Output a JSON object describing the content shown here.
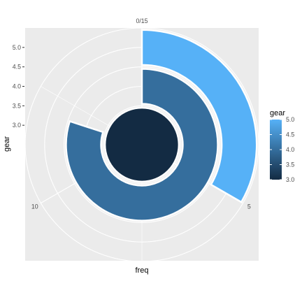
{
  "chart_data": {
    "type": "bar",
    "coord": "polar",
    "xlabel": "freq",
    "ylabel": "gear",
    "theta_ticks": [
      {
        "value": 0,
        "label": "0/15"
      },
      {
        "value": 5,
        "label": "5"
      },
      {
        "value": 10,
        "label": "10"
      }
    ],
    "theta_range": [
      0,
      15
    ],
    "r_ticks": [
      {
        "value": 3.0,
        "label": "3.0"
      },
      {
        "value": 3.5,
        "label": "3.5"
      },
      {
        "value": 4.0,
        "label": "4.0"
      },
      {
        "value": 4.5,
        "label": "4.5"
      },
      {
        "value": 5.0,
        "label": "5.0"
      }
    ],
    "bars": [
      {
        "gear": 3,
        "freq": 15
      },
      {
        "gear": 4,
        "freq": 12
      },
      {
        "gear": 5,
        "freq": 5
      }
    ],
    "legend": {
      "title": "gear",
      "position": "right",
      "range": [
        3.0,
        5.0
      ],
      "ticks": [
        "5.0",
        "4.5",
        "4.0",
        "3.5",
        "3.0"
      ],
      "color_low": "#132B43",
      "color_high": "#56B1F7"
    },
    "grid": true,
    "panel_background": "#EBEBEB"
  }
}
